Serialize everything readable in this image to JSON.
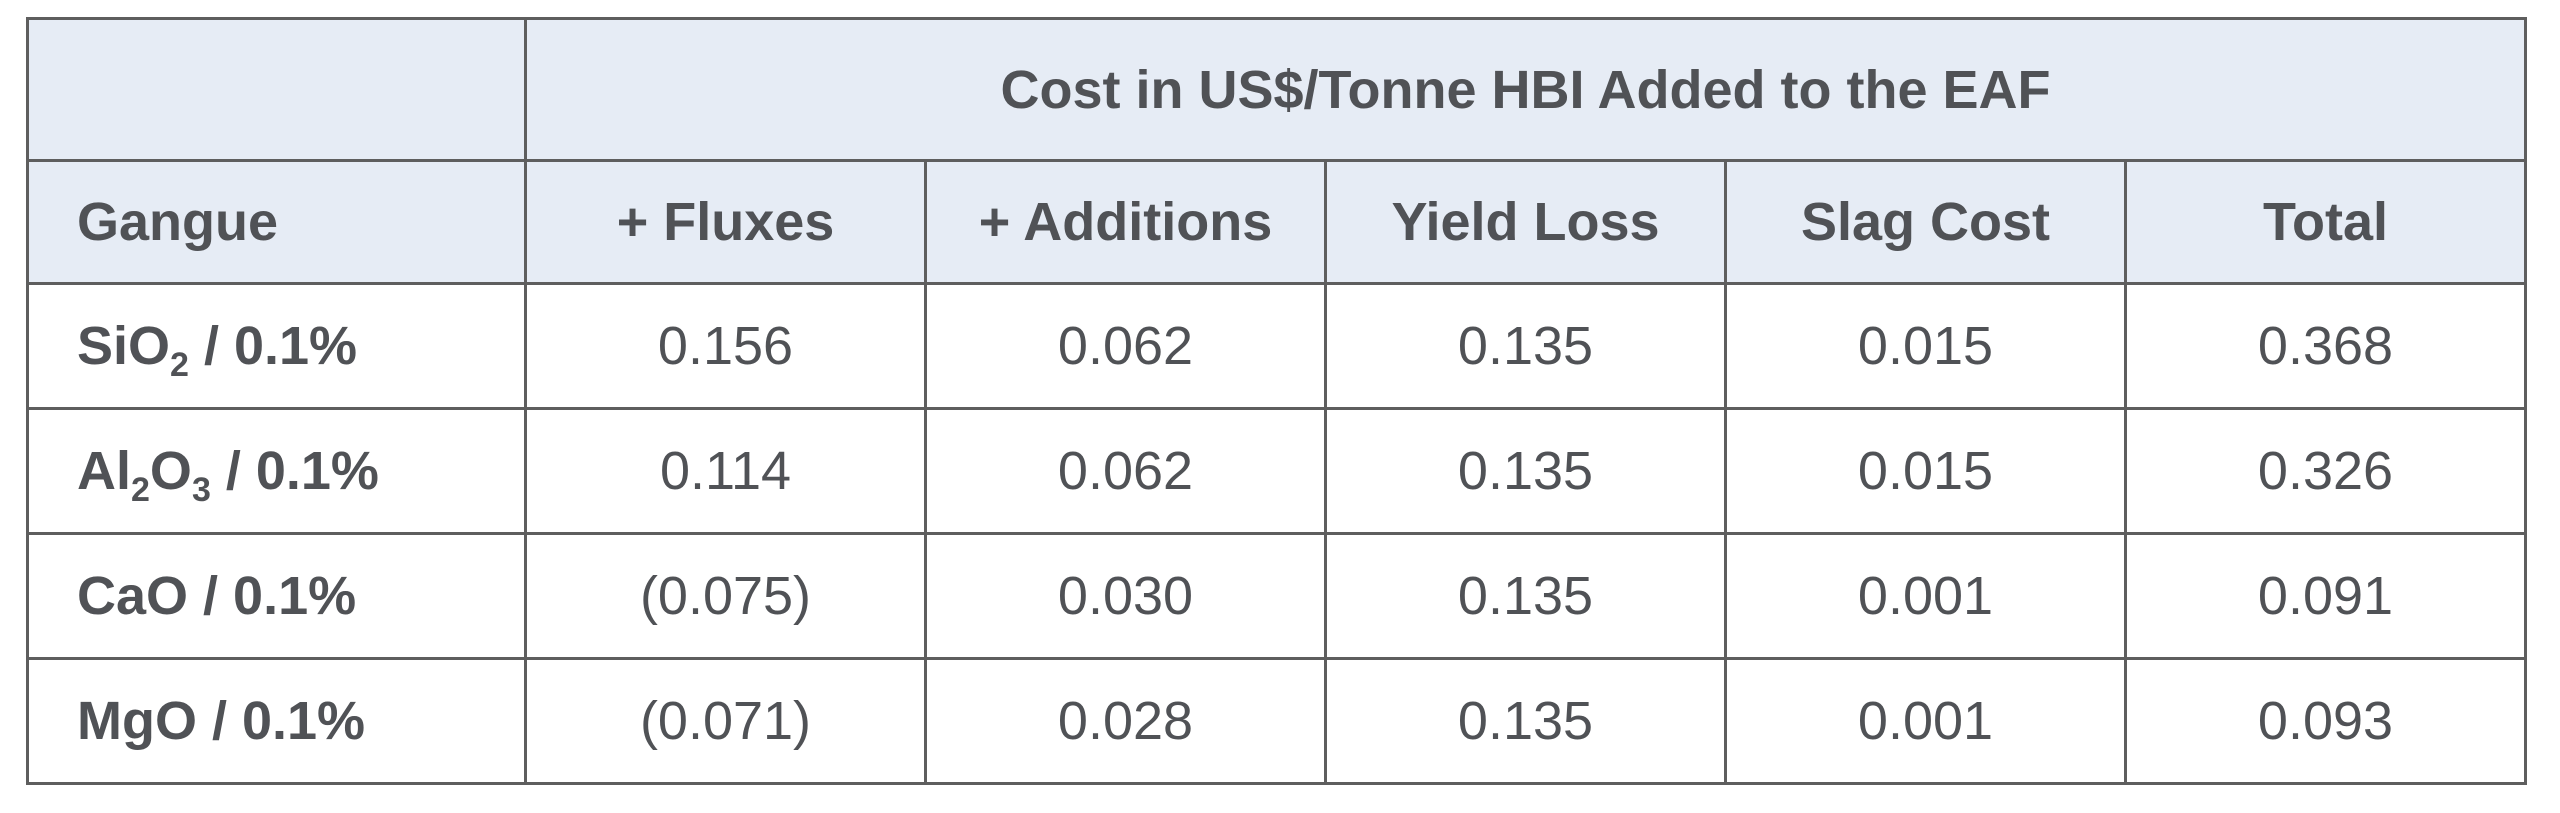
{
  "table": {
    "super_header": "Cost in US$/Tonne HBI Added to the EAF",
    "columns": [
      "Gangue",
      "+ Fluxes",
      "+ Additions",
      "Yield Loss",
      "Slag Cost",
      "Total"
    ],
    "rows": [
      {
        "gangue": {
          "parts": [
            "SiO",
            "2",
            " / 0.1%"
          ]
        },
        "values": [
          "0.156",
          "0.062",
          "0.135",
          "0.015",
          "0.368"
        ]
      },
      {
        "gangue": {
          "parts": [
            "Al",
            "2",
            "O",
            "3",
            " / 0.1%"
          ]
        },
        "values": [
          "0.114",
          "0.062",
          "0.135",
          "0.015",
          "0.326"
        ]
      },
      {
        "gangue": {
          "parts": [
            "CaO / 0.1%"
          ]
        },
        "values": [
          "(0.075)",
          "0.030",
          "0.135",
          "0.001",
          "0.091"
        ]
      },
      {
        "gangue": {
          "parts": [
            "MgO / 0.1%"
          ]
        },
        "values": [
          "(0.071)",
          "0.028",
          "0.135",
          "0.001",
          "0.093"
        ]
      }
    ]
  }
}
